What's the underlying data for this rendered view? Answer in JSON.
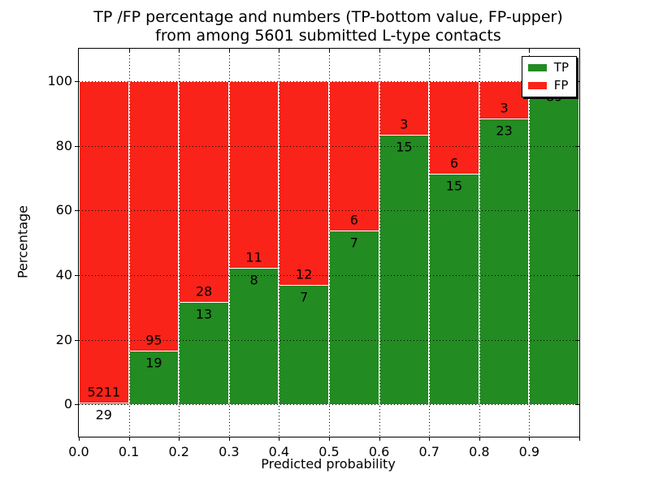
{
  "figure": {
    "title_line1": "TP /FP percentage and numbers (TP-bottom value, FP-upper)",
    "title_line2": "from among 5601 submitted L-type contacts"
  },
  "chart_data": {
    "type": "bar",
    "stacked": true,
    "title": "TP /FP percentage and numbers (TP-bottom value, FP-upper) from among 5601 submitted L-type contacts",
    "xlabel": "Predicted probability",
    "ylabel": "Percentage",
    "xlim": [
      0.0,
      1.0
    ],
    "ylim": [
      -10,
      110
    ],
    "grid": true,
    "bin_width": 0.1,
    "categories": [
      "0.0-0.1",
      "0.1-0.2",
      "0.2-0.3",
      "0.3-0.4",
      "0.4-0.5",
      "0.5-0.6",
      "0.6-0.7",
      "0.7-0.8",
      "0.8-0.9",
      "0.9-1.0"
    ],
    "xtick_labels": [
      "0.0",
      "0.1",
      "0.2",
      "0.3",
      "0.4",
      "0.5",
      "0.6",
      "0.7",
      "0.8",
      "0.9"
    ],
    "ytick_values": [
      0,
      20,
      40,
      60,
      80,
      100
    ],
    "ytick_labels": [
      "0",
      "20",
      "40",
      "60",
      "80",
      "100"
    ],
    "series": [
      {
        "name": "TP",
        "color": "#228b22",
        "counts": [
          29,
          19,
          13,
          8,
          7,
          7,
          15,
          15,
          23,
          89
        ]
      },
      {
        "name": "FP",
        "color": "#fa2319",
        "counts": [
          5211,
          95,
          28,
          11,
          12,
          6,
          3,
          6,
          3,
          1
        ]
      }
    ],
    "tp_percent": [
      0.55,
      16.67,
      31.71,
      42.11,
      36.84,
      53.85,
      83.33,
      71.43,
      88.46,
      98.89
    ],
    "tp_count_labels": [
      "29",
      "19",
      "13",
      "8",
      "7",
      "7",
      "15",
      "15",
      "23",
      "89"
    ],
    "fp_count_labels": [
      "5211",
      "95",
      "28",
      "11",
      "12",
      "6",
      "3",
      "6",
      "3",
      ""
    ],
    "legend_position": "upper right"
  },
  "legend": {
    "items": [
      {
        "label": "TP",
        "color": "#228b22"
      },
      {
        "label": "FP",
        "color": "#fa2319"
      }
    ]
  }
}
